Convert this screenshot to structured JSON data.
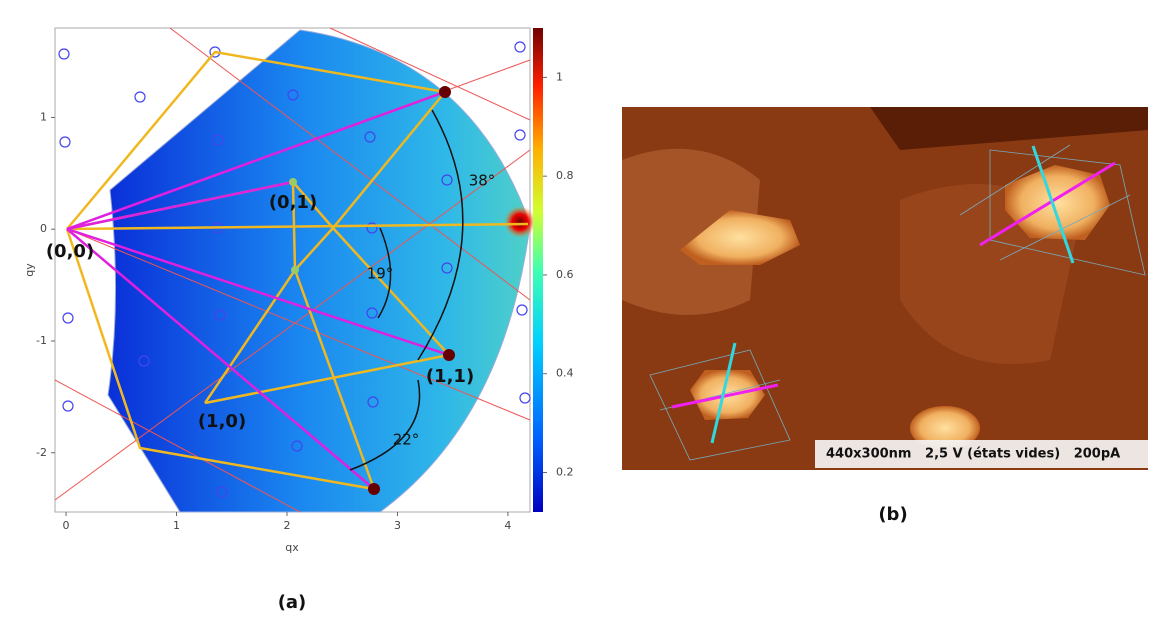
{
  "panel_a": {
    "label": "(a)",
    "xlabel": "qx",
    "ylabel": "qy",
    "xticks": [
      0,
      1,
      2,
      3,
      4
    ],
    "yticks": [
      1,
      0,
      -1,
      -2
    ],
    "xlim": [
      -0.1,
      4.2
    ],
    "ylim": [
      -2.53,
      1.8
    ],
    "colorbar_ticks": [
      1,
      0.8,
      0.6,
      0.4,
      0.2
    ],
    "colorbar_lim": [
      0.12,
      1.1
    ],
    "annotations": [
      "(0,0)",
      "(0,1)",
      "(1,1)",
      "(1,0)",
      "38°",
      "19°",
      "22°"
    ]
  },
  "panel_b": {
    "label": "(b)",
    "caption": "440x300nm   2,5 V (états vides)   200pA"
  }
}
